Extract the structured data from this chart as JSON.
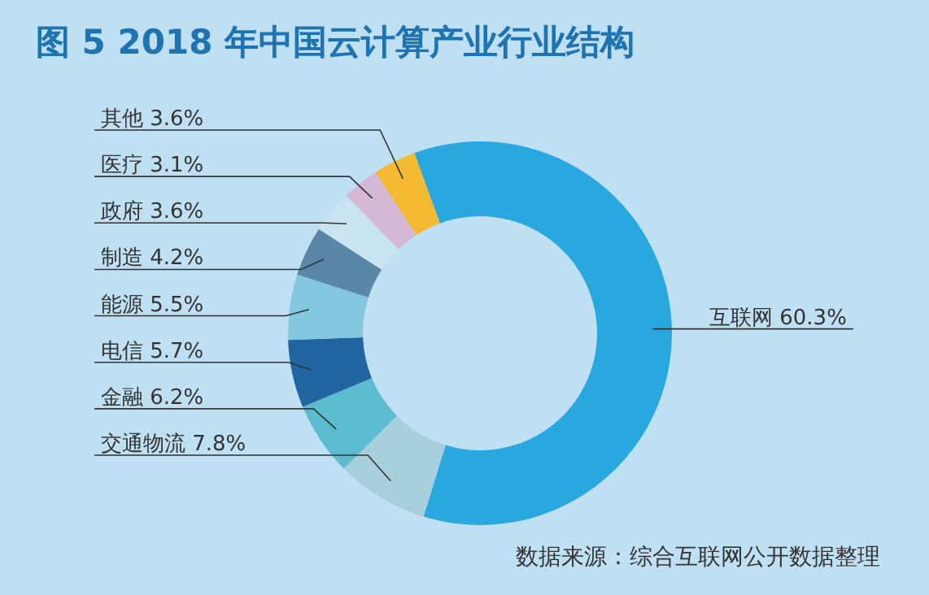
{
  "chart_data": {
    "type": "donut",
    "title": "图 5  2018 年中国云计算产业行业结构",
    "categories": [
      "互联网",
      "交通物流",
      "金融",
      "电信",
      "能源",
      "制造",
      "政府",
      "医疗",
      "其他"
    ],
    "values": [
      60.3,
      7.8,
      6.2,
      5.7,
      5.5,
      4.2,
      3.6,
      3.1,
      3.6
    ],
    "value_labels": [
      "60.3%",
      "7.8%",
      "6.2%",
      "5.7%",
      "5.5%",
      "4.2%",
      "3.6%",
      "3.1%",
      "3.6%"
    ],
    "colors": [
      "#29a8e0",
      "#a8d0dc",
      "#5bbcd0",
      "#2064a0",
      "#84c8e0",
      "#5a86a8",
      "#c8e4f0",
      "#d4b8d4",
      "#f5b932"
    ],
    "annotations": [
      "数据来源：综合互联网公开数据整理"
    ]
  }
}
